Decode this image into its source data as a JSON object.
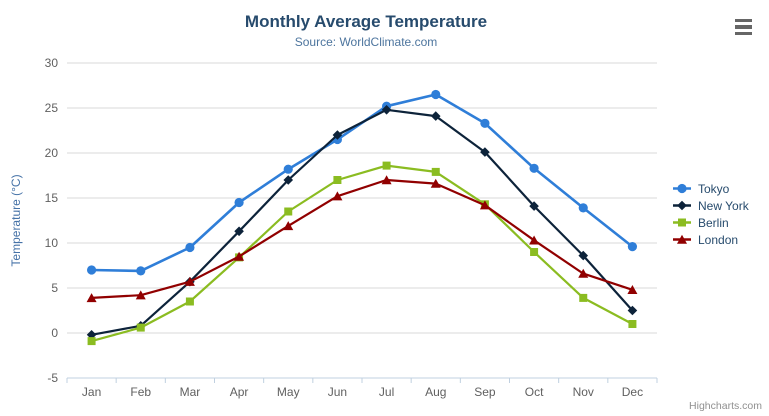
{
  "chart_data": {
    "type": "line",
    "title": "Monthly Average Temperature",
    "subtitle": "Source: WorldClimate.com",
    "categories": [
      "Jan",
      "Feb",
      "Mar",
      "Apr",
      "May",
      "Jun",
      "Jul",
      "Aug",
      "Sep",
      "Oct",
      "Nov",
      "Dec"
    ],
    "xlabel": "",
    "ylabel": "Temperature (°C)",
    "ylim": [
      -5,
      30
    ],
    "ytick_interval": 5,
    "grid": "horizontal",
    "legend_position": "right",
    "series": [
      {
        "name": "Tokyo",
        "color": "#2f7ed8",
        "marker": "circle",
        "values": [
          7.0,
          6.9,
          9.5,
          14.5,
          18.2,
          21.5,
          25.2,
          26.5,
          23.3,
          18.3,
          13.9,
          9.6
        ]
      },
      {
        "name": "New York",
        "color": "#0d233a",
        "marker": "diamond",
        "values": [
          -0.2,
          0.8,
          5.7,
          11.3,
          17.0,
          22.0,
          24.8,
          24.1,
          20.1,
          14.1,
          8.6,
          2.5
        ]
      },
      {
        "name": "Berlin",
        "color": "#8bbc21",
        "marker": "square",
        "values": [
          -0.9,
          0.6,
          3.5,
          8.4,
          13.5,
          17.0,
          18.6,
          17.9,
          14.3,
          9.0,
          3.9,
          1.0
        ]
      },
      {
        "name": "London",
        "color": "#910000",
        "marker": "triangle",
        "values": [
          3.9,
          4.2,
          5.7,
          8.5,
          11.9,
          15.2,
          17.0,
          16.6,
          14.2,
          10.3,
          6.6,
          4.8
        ]
      }
    ]
  },
  "credits": {
    "text": "Highcharts.com"
  },
  "theme": {
    "title_color": "#274b6d",
    "subtitle_color": "#4d759e",
    "axis_label_color": "#606060",
    "yaxis_title_color": "#4572a7",
    "grid_color": "#d8d8d8",
    "axis_line_color": "#c0d0e0",
    "legend_text_color": "#274b6d",
    "credits_color": "#909090",
    "menu_icon_color": "#666666",
    "background": "#ffffff"
  }
}
